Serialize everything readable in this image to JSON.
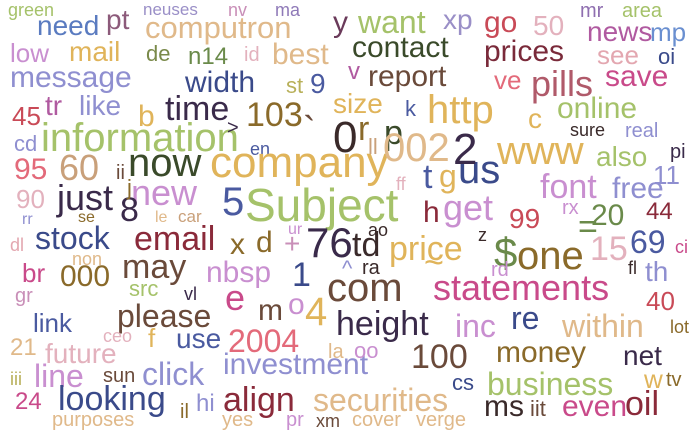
{
  "words": [
    {
      "text": "green",
      "color": "#a5c26a"
    },
    {
      "text": "pt",
      "color": "#8c5a7a"
    },
    {
      "text": "neuses",
      "color": "#9a8fc7"
    },
    {
      "text": "nv",
      "color": "#c98fb8"
    },
    {
      "text": "ma",
      "color": "#8f7ab8"
    },
    {
      "text": "mr",
      "color": "#8f6fb0"
    },
    {
      "text": "area",
      "color": "#a5c26a"
    },
    {
      "text": "need",
      "color": "#5a7bc0"
    },
    {
      "text": "computron",
      "color": "#e0b98a"
    },
    {
      "text": "y",
      "color": "#6a3a5a"
    },
    {
      "text": "want",
      "color": "#a5c26a"
    },
    {
      "text": "xp",
      "color": "#9a8fc7"
    },
    {
      "text": "go",
      "color": "#c94a57"
    },
    {
      "text": "50",
      "color": "#e3b1bd"
    },
    {
      "text": "mp",
      "color": "#6a8fd0"
    },
    {
      "text": "low",
      "color": "#c98fd0"
    },
    {
      "text": "mail",
      "color": "#e0b45a"
    },
    {
      "text": "de",
      "color": "#7a8a4a"
    },
    {
      "text": "n14",
      "color": "#6a8a4a"
    },
    {
      "text": "id",
      "color": "#e3b1bd"
    },
    {
      "text": "best",
      "color": "#e0b98a"
    },
    {
      "text": "contact",
      "color": "#3a4a2a"
    },
    {
      "text": "prices",
      "color": "#7a2a3a"
    },
    {
      "text": "news",
      "color": "#b05aa0"
    },
    {
      "text": "see",
      "color": "#e3a7b0"
    },
    {
      "text": "oi",
      "color": "#3a4a8a"
    },
    {
      "text": "message",
      "color": "#8f8fd0"
    },
    {
      "text": "width",
      "color": "#3a4a8a"
    },
    {
      "text": "st",
      "color": "#b8b05a"
    },
    {
      "text": "9",
      "color": "#4a5aa0"
    },
    {
      "text": "v",
      "color": "#b05aa0"
    },
    {
      "text": "report",
      "color": "#6a4a3a"
    },
    {
      "text": "ve",
      "color": "#e36a7a"
    },
    {
      "text": "pills",
      "color": "#b05a6a"
    },
    {
      "text": "save",
      "color": "#c94a8a"
    },
    {
      "text": "45",
      "color": "#c94a57"
    },
    {
      "text": "tr",
      "color": "#b05aa0"
    },
    {
      "text": "like",
      "color": "#8f8fd0"
    },
    {
      "text": "b",
      "color": "#e0b45a"
    },
    {
      "text": "time",
      "color": "#3a2a4a"
    },
    {
      "text": "103",
      "color": "#8a6a2a"
    },
    {
      "text": "size",
      "color": "#e0b45a"
    },
    {
      "text": "k",
      "color": "#4a5aa0"
    },
    {
      "text": "http",
      "color": "#e0b45a"
    },
    {
      "text": "online",
      "color": "#a5c26a"
    },
    {
      "text": "c",
      "color": "#e0b45a"
    },
    {
      "text": "cd",
      "color": "#8f8fd0"
    },
    {
      "text": "information",
      "color": "#a5c26a"
    },
    {
      "text": "en",
      "color": "#4a5aa0"
    },
    {
      "text": "0",
      "color": "#3a2a2a"
    },
    {
      "text": "p",
      "color": "#3a4a2a"
    },
    {
      "text": "sure",
      "color": "#3a2a2a"
    },
    {
      "text": "real",
      "color": "#8f8fd0"
    },
    {
      "text": "95",
      "color": "#e36a7a"
    },
    {
      "text": "60",
      "color": "#c9a07a"
    },
    {
      "text": "now",
      "color": "#3a4a2a"
    },
    {
      "text": "company",
      "color": "#e0b45a"
    },
    {
      "text": "002",
      "color": "#e0b98a"
    },
    {
      "text": "www",
      "color": "#e0b45a"
    },
    {
      "text": "also",
      "color": "#a5c26a"
    },
    {
      "text": "pi",
      "color": "#3a2a4a"
    },
    {
      "text": "90",
      "color": "#e3b1bd"
    },
    {
      "text": "just",
      "color": "#3a2a4a"
    },
    {
      "text": "new",
      "color": "#c98fd0"
    },
    {
      "text": "5",
      "color": "#4a5aa0"
    },
    {
      "text": "Subject",
      "color": "#a5c26a"
    },
    {
      "text": "t",
      "color": "#4a5aa0"
    },
    {
      "text": "g",
      "color": "#e0b45a"
    },
    {
      "text": "us",
      "color": "#3a4a8a"
    },
    {
      "text": "font",
      "color": "#c98fd0"
    },
    {
      "text": "free",
      "color": "#8f8fd0"
    },
    {
      "text": "11",
      "color": "#8f8fd0"
    },
    {
      "text": "8",
      "color": "#3a2a4a"
    },
    {
      "text": "h",
      "color": "#8a2a3a"
    },
    {
      "text": "get",
      "color": "#c98fd0"
    },
    {
      "text": "99",
      "color": "#c94a57"
    },
    {
      "text": "20",
      "color": "#6a8a4a"
    },
    {
      "text": "44",
      "color": "#8a2a3a"
    },
    {
      "text": "se",
      "color": "#8a6a2a"
    },
    {
      "text": "le",
      "color": "#e0b98a"
    },
    {
      "text": "car",
      "color": "#c9a07a"
    },
    {
      "text": "stock",
      "color": "#3a4a8a"
    },
    {
      "text": "email",
      "color": "#8a2a3a"
    },
    {
      "text": "x",
      "color": "#8a6a2a"
    },
    {
      "text": "d",
      "color": "#8a6a2a"
    },
    {
      "text": "+",
      "color": "#c98fb8"
    },
    {
      "text": "76",
      "color": "#3a2a4a"
    },
    {
      "text": "td",
      "color": "#3a2a2a"
    },
    {
      "text": "price",
      "color": "#e0b45a"
    },
    {
      "text": "one",
      "color": "#8a6a2a"
    },
    {
      "text": "15",
      "color": "#e3b1bd"
    },
    {
      "text": "69",
      "color": "#4a5aa0"
    },
    {
      "text": "dl",
      "color": "#e3a7b0"
    },
    {
      "text": "br",
      "color": "#c94a8a"
    },
    {
      "text": "000",
      "color": "#8a6a2a"
    },
    {
      "text": "may",
      "color": "#6a4a3a"
    },
    {
      "text": "nbsp",
      "color": "#c98fd0"
    },
    {
      "text": "1",
      "color": "#3a4a8a"
    },
    {
      "text": "com",
      "color": "#6a4a3a"
    },
    {
      "text": "statements",
      "color": "#c94a8a"
    },
    {
      "text": "fl",
      "color": "#3a2a2a"
    },
    {
      "text": "th",
      "color": "#8f8fd0"
    },
    {
      "text": "src",
      "color": "#a5c26a"
    },
    {
      "text": "e",
      "color": "#c94a8a"
    },
    {
      "text": "m",
      "color": "#6a4a3a"
    },
    {
      "text": "o",
      "color": "#c98fd0"
    },
    {
      "text": "4",
      "color": "#e0b45a"
    },
    {
      "text": "40",
      "color": "#c94a57"
    },
    {
      "text": "gr",
      "color": "#c98fb8"
    },
    {
      "text": "link",
      "color": "#4a5aa0"
    },
    {
      "text": "please",
      "color": "#6a4a3a"
    },
    {
      "text": "height",
      "color": "#3a2a4a"
    },
    {
      "text": "inc",
      "color": "#c98fd0"
    },
    {
      "text": "re",
      "color": "#3a4a8a"
    },
    {
      "text": "within",
      "color": "#e0b98a"
    },
    {
      "text": "lot",
      "color": "#8a6a2a"
    },
    {
      "text": "use",
      "color": "#4a5aa0"
    },
    {
      "text": "2004",
      "color": "#e36a7a"
    },
    {
      "text": "21",
      "color": "#e0b98a"
    },
    {
      "text": "future",
      "color": "#e3b1bd"
    },
    {
      "text": "click",
      "color": "#8f8fd0"
    },
    {
      "text": "investment",
      "color": "#8f8fd0"
    },
    {
      "text": "oo",
      "color": "#c98fd0"
    },
    {
      "text": "100",
      "color": "#6a4a3a"
    },
    {
      "text": "money",
      "color": "#8a6a2a"
    },
    {
      "text": "net",
      "color": "#3a2a4a"
    },
    {
      "text": "iii",
      "color": "#b8b05a"
    },
    {
      "text": "line",
      "color": "#c98fd0"
    },
    {
      "text": "sun",
      "color": "#6a4a3a"
    },
    {
      "text": "cs",
      "color": "#3a4a8a"
    },
    {
      "text": "business",
      "color": "#a5c26a"
    },
    {
      "text": "w",
      "color": "#e0b45a"
    },
    {
      "text": "tv",
      "color": "#8a6a2a"
    },
    {
      "text": "24",
      "color": "#c94a8a"
    },
    {
      "text": "looking",
      "color": "#3a4a8a"
    },
    {
      "text": "hi",
      "color": "#8f8fd0"
    },
    {
      "text": "align",
      "color": "#8a2a3a"
    },
    {
      "text": "securities",
      "color": "#e0b98a"
    },
    {
      "text": "ms",
      "color": "#3a2a2a"
    },
    {
      "text": "iit",
      "color": "#6a4a3a"
    },
    {
      "text": "even",
      "color": "#c94a8a"
    },
    {
      "text": "oil",
      "color": "#8a2a3a"
    },
    {
      "text": "purposes",
      "color": "#e0b98a"
    },
    {
      "text": "il",
      "color": "#8a6a2a"
    },
    {
      "text": "yes",
      "color": "#e0b98a"
    },
    {
      "text": "pr",
      "color": "#c98fd0"
    },
    {
      "text": "xm",
      "color": "#6a4a3a"
    },
    {
      "text": "cover",
      "color": "#e0b98a"
    },
    {
      "text": "verge",
      "color": "#e0b98a"
    },
    {
      "text": "`",
      "color": "#6a4a3a"
    },
    {
      "text": "r",
      "color": "#8a6a2a"
    },
    {
      "text": "ll",
      "color": "#c9a07a"
    },
    {
      "text": "2",
      "color": "#3a2a4a"
    },
    {
      "text": "ii",
      "color": "#6a4a3a"
    },
    {
      "text": "j",
      "color": "#8a6a2a"
    },
    {
      "text": "ff",
      "color": "#e3b1bd"
    },
    {
      "text": "rx",
      "color": "#c98fd0"
    },
    {
      "text": "=",
      "color": "#6a8a4a"
    },
    {
      "text": "ci",
      "color": "#c94a8a"
    },
    {
      "text": "z",
      "color": "#3a2a2a"
    },
    {
      "text": "$",
      "color": "#6a8a4a"
    },
    {
      "text": "~",
      "color": "#e0b45a"
    },
    {
      "text": "^",
      "color": "#8f8fd0"
    },
    {
      "text": "ra",
      "color": "#3a2a2a"
    },
    {
      "text": "rd",
      "color": "#c98fd0"
    },
    {
      "text": "ao",
      "color": "#3a2a2a"
    },
    {
      "text": "ur",
      "color": "#c98fd0"
    },
    {
      "text": "non",
      "color": "#e0b98a"
    },
    {
      "text": "vl",
      "color": "#3a2a4a"
    },
    {
      "text": "ceo",
      "color": "#e3b1bd"
    },
    {
      "text": "f",
      "color": "#e0b45a"
    },
    {
      "text": "la",
      "color": "#e0b98a"
    },
    {
      "text": ">",
      "color": "#3a2a4a"
    },
    {
      "text": "rr",
      "color": "#8f8fd0"
    }
  ]
}
